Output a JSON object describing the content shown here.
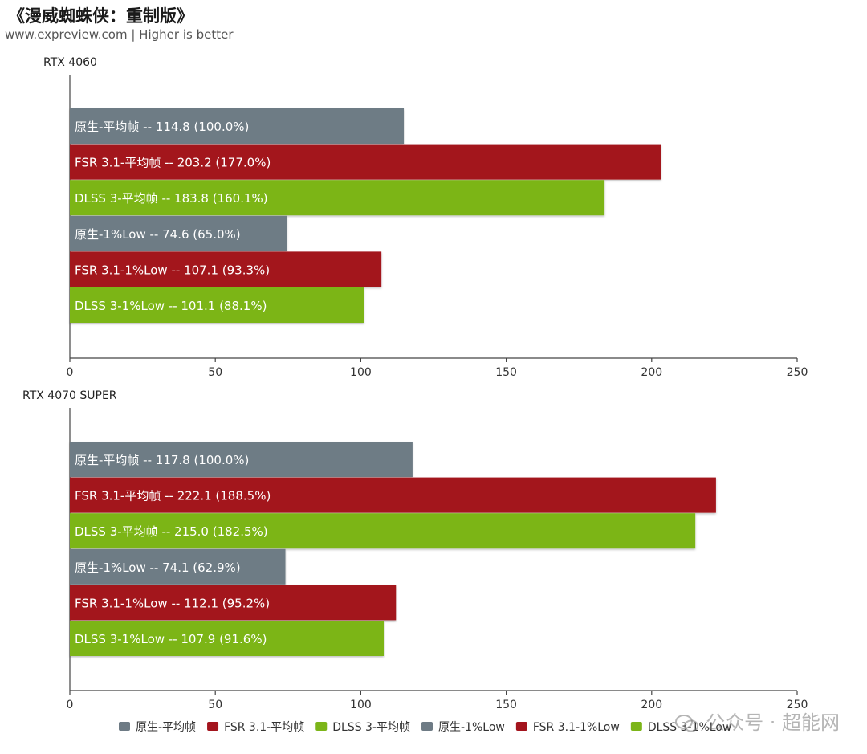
{
  "title": "《漫威蜘蛛侠：重制版》",
  "subtitle": "www.expreview.com | Higher is better",
  "watermark": "公众号 · 超能网",
  "colors": {
    "native": "#6e7b85",
    "fsr": "#a3141d",
    "dlss": "#7cb519"
  },
  "chart_data": {
    "type": "bar",
    "orientation": "horizontal",
    "xlim": [
      0,
      250
    ],
    "xticks": [
      0,
      50,
      100,
      150,
      200,
      250
    ],
    "grid": false,
    "legend_position": "bottom",
    "series": [
      {
        "name": "原生-平均帧",
        "color": "native"
      },
      {
        "name": "FSR 3.1-平均帧",
        "color": "fsr"
      },
      {
        "name": "DLSS 3-平均帧",
        "color": "dlss"
      },
      {
        "name": "原生-1%Low",
        "color": "native"
      },
      {
        "name": "FSR 3.1-1%Low",
        "color": "fsr"
      },
      {
        "name": "DLSS 3-1%Low",
        "color": "dlss"
      }
    ],
    "panels": [
      {
        "label": "RTX 4060",
        "bars": [
          {
            "series": "原生-平均帧",
            "value": 114.8,
            "label": "原生-平均帧  --  114.8 (100.0%)"
          },
          {
            "series": "FSR 3.1-平均帧",
            "value": 203.2,
            "label": "FSR 3.1-平均帧  --  203.2 (177.0%)"
          },
          {
            "series": "DLSS 3-平均帧",
            "value": 183.8,
            "label": "DLSS 3-平均帧  --  183.8 (160.1%)"
          },
          {
            "series": "原生-1%Low",
            "value": 74.6,
            "label": "原生-1%Low  --  74.6 (65.0%)"
          },
          {
            "series": "FSR 3.1-1%Low",
            "value": 107.1,
            "label": "FSR 3.1-1%Low  --  107.1 (93.3%)"
          },
          {
            "series": "DLSS 3-1%Low",
            "value": 101.1,
            "label": "DLSS 3-1%Low  --  101.1 (88.1%)"
          }
        ]
      },
      {
        "label": "RTX 4070 SUPER",
        "bars": [
          {
            "series": "原生-平均帧",
            "value": 117.8,
            "label": "原生-平均帧  --  117.8 (100.0%)"
          },
          {
            "series": "FSR 3.1-平均帧",
            "value": 222.1,
            "label": "FSR 3.1-平均帧  --  222.1 (188.5%)"
          },
          {
            "series": "DLSS 3-平均帧",
            "value": 215.0,
            "label": "DLSS 3-平均帧  --  215.0 (182.5%)"
          },
          {
            "series": "原生-1%Low",
            "value": 74.1,
            "label": "原生-1%Low  --  74.1 (62.9%)"
          },
          {
            "series": "FSR 3.1-1%Low",
            "value": 112.1,
            "label": "FSR 3.1-1%Low  --  112.1 (95.2%)"
          },
          {
            "series": "DLSS 3-1%Low",
            "value": 107.9,
            "label": "DLSS 3-1%Low  --  107.9 (91.6%)"
          }
        ]
      }
    ]
  }
}
